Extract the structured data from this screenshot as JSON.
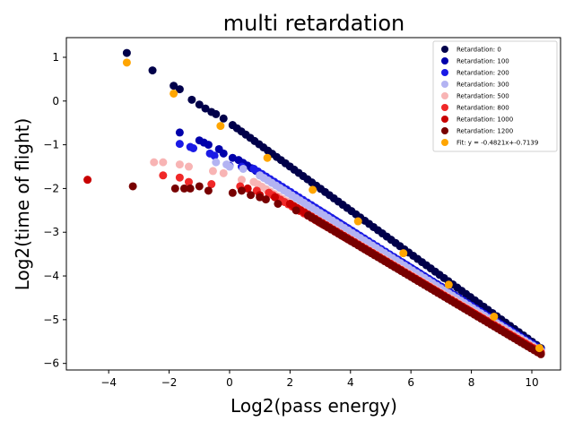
{
  "chart_data": {
    "type": "scatter",
    "title": "multi retardation",
    "xlabel": "Log2(pass energy)",
    "ylabel": "Log2(time of flight)",
    "xlim": [
      -5.4,
      10.95
    ],
    "ylim": [
      -6.15,
      1.45
    ],
    "xticks": [
      -4,
      -2,
      0,
      2,
      4,
      6,
      8,
      10
    ],
    "yticks": [
      1,
      0,
      -1,
      -2,
      -3,
      -4,
      -5,
      -6
    ],
    "legend_position": "upper right",
    "series": [
      {
        "name": "Retardation: 0",
        "color": "#00004a",
        "scatter_points": [
          [
            -3.4,
            1.1
          ],
          [
            -2.55,
            0.7
          ],
          [
            -1.85,
            0.35
          ],
          [
            -1.65,
            0.27
          ],
          [
            -1.25,
            0.03
          ],
          [
            -1.0,
            -0.08
          ],
          [
            -0.8,
            -0.17
          ],
          [
            -0.6,
            -0.25
          ],
          [
            -0.45,
            -0.3
          ],
          [
            -0.2,
            -0.4
          ],
          [
            0.1,
            -0.55
          ]
        ],
        "trend": {
          "x_start": 0.1,
          "y_start": -0.55,
          "x_end": 10.3,
          "y_end": -5.65
        }
      },
      {
        "name": "Retardation: 100",
        "color": "#0000aa",
        "scatter_points": [
          [
            -1.65,
            -0.72
          ],
          [
            -1.0,
            -0.9
          ],
          [
            -0.85,
            -0.95
          ],
          [
            -0.7,
            -1.0
          ],
          [
            -0.35,
            -1.1
          ],
          [
            -0.2,
            -1.2
          ],
          [
            0.1,
            -1.3
          ]
        ],
        "trend": {
          "x_start": 0.3,
          "y_start": -1.35,
          "x_end": 10.3,
          "y_end": -5.67
        }
      },
      {
        "name": "Retardation: 200",
        "color": "#1a1ae6",
        "scatter_points": [
          [
            -1.65,
            -0.98
          ],
          [
            -1.3,
            -1.05
          ],
          [
            -1.2,
            -1.08
          ],
          [
            -0.65,
            -1.2
          ],
          [
            -0.5,
            -1.25
          ],
          [
            0.0,
            -1.48
          ],
          [
            0.4,
            -1.5
          ],
          [
            0.8,
            -1.55
          ]
        ],
        "trend": {
          "x_start": 0.8,
          "y_start": -1.55,
          "x_end": 10.3,
          "y_end": -5.69
        }
      },
      {
        "name": "Retardation: 300",
        "color": "#b3b3f2",
        "scatter_points": [
          [
            -0.45,
            -1.4
          ],
          [
            -0.1,
            -1.45
          ],
          [
            0.0,
            -1.5
          ],
          [
            0.45,
            -1.55
          ],
          [
            1.0,
            -1.7
          ]
        ],
        "trend": {
          "x_start": 1.0,
          "y_start": -1.7,
          "x_end": 10.3,
          "y_end": -5.71
        }
      },
      {
        "name": "Retardation: 500",
        "color": "#f8b4b4",
        "scatter_points": [
          [
            -2.5,
            -1.4
          ],
          [
            -2.2,
            -1.4
          ],
          [
            -1.65,
            -1.45
          ],
          [
            -1.35,
            -1.5
          ],
          [
            -0.55,
            -1.6
          ],
          [
            -0.2,
            -1.65
          ],
          [
            0.4,
            -1.8
          ],
          [
            0.8,
            -1.85
          ]
        ],
        "trend": {
          "x_start": 0.8,
          "y_start": -1.85,
          "x_end": 10.3,
          "y_end": -5.73
        }
      },
      {
        "name": "Retardation: 800",
        "color": "#f02828",
        "scatter_points": [
          [
            -2.2,
            -1.7
          ],
          [
            -1.65,
            -1.75
          ],
          [
            -1.35,
            -1.85
          ],
          [
            -0.6,
            -1.9
          ],
          [
            0.35,
            -1.95
          ],
          [
            0.9,
            -2.05
          ],
          [
            1.3,
            -2.1
          ]
        ],
        "trend": {
          "x_start": 1.3,
          "y_start": -2.1,
          "x_end": 10.3,
          "y_end": -5.75
        }
      },
      {
        "name": "Retardation: 1000",
        "color": "#c80000",
        "scatter_points": [
          [
            -4.7,
            -1.8
          ],
          [
            0.6,
            -2.0
          ],
          [
            1.0,
            -2.15
          ],
          [
            1.5,
            -2.2
          ],
          [
            2.0,
            -2.35
          ]
        ],
        "trend": {
          "x_start": 2.0,
          "y_start": -2.35,
          "x_end": 10.3,
          "y_end": -5.77
        }
      },
      {
        "name": "Retardation: 1200",
        "color": "#780000",
        "scatter_points": [
          [
            -3.2,
            -1.95
          ],
          [
            -1.8,
            -2.0
          ],
          [
            -1.5,
            -2.0
          ],
          [
            -1.3,
            -2.0
          ],
          [
            -1.0,
            -1.95
          ],
          [
            -0.7,
            -2.05
          ],
          [
            0.1,
            -2.1
          ],
          [
            0.4,
            -2.05
          ],
          [
            0.7,
            -2.15
          ],
          [
            1.0,
            -2.2
          ],
          [
            1.2,
            -2.25
          ],
          [
            1.6,
            -2.35
          ],
          [
            2.2,
            -2.5
          ],
          [
            2.6,
            -2.62
          ]
        ],
        "trend": {
          "x_start": 2.6,
          "y_start": -2.62,
          "x_end": 10.3,
          "y_end": -5.79
        }
      },
      {
        "name": "Fit: y = -0.4821x+-0.7139",
        "color": "#ffa500",
        "scatter_points": [
          [
            -3.4,
            0.88
          ],
          [
            -1.85,
            0.17
          ],
          [
            -0.3,
            -0.57
          ],
          [
            1.25,
            -1.3
          ],
          [
            2.75,
            -2.03
          ],
          [
            4.25,
            -2.75
          ],
          [
            5.75,
            -3.48
          ],
          [
            7.25,
            -4.2
          ],
          [
            8.75,
            -4.93
          ],
          [
            10.25,
            -5.65
          ]
        ]
      }
    ]
  }
}
